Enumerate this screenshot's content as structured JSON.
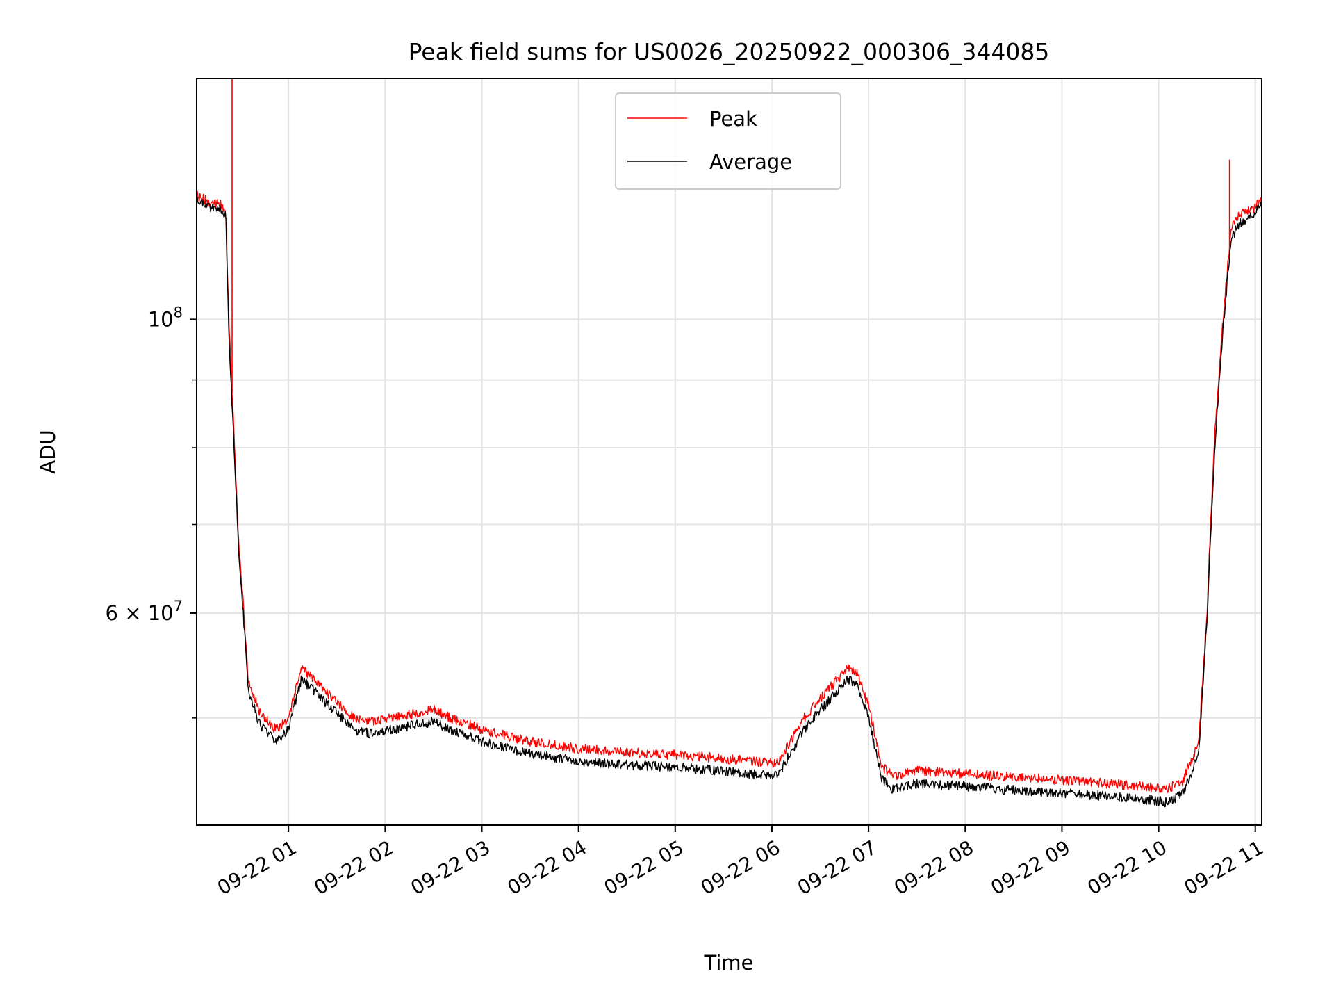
{
  "chart_data": {
    "type": "line",
    "title": "Peak field sums for US0026_20250922_000306_344085",
    "xlabel": "Time",
    "ylabel": "ADU",
    "yscale": "log",
    "grid": true,
    "legend_placement": "top-center",
    "xlim": [
      "2025-09-22 00:03",
      "2025-09-22 11:04"
    ],
    "ylim": [
      41500000,
      152000000
    ],
    "x_ticks": [
      "09-22 01",
      "09-22 02",
      "09-22 03",
      "09-22 04",
      "09-22 05",
      "09-22 06",
      "09-22 07",
      "09-22 08",
      "09-22 09",
      "09-22 10",
      "09-22 11"
    ],
    "x_tick_hours": [
      1,
      2,
      3,
      4,
      5,
      6,
      7,
      8,
      9,
      10,
      11
    ],
    "y_tick_labels": [
      {
        "value": 100000000,
        "base": "10",
        "exp": "8"
      },
      {
        "value": 60000000,
        "base": "6 × 10",
        "exp": "7"
      }
    ],
    "y_minor_ticks": [
      50000000,
      70000000,
      80000000,
      90000000
    ],
    "x": [
      "00:03",
      "00:12",
      "00:18",
      "00:21",
      "00:23",
      "00:25",
      "00:29",
      "00:35",
      "00:42",
      "00:52",
      "01:00",
      "01:08",
      "01:15",
      "01:22",
      "01:30",
      "01:40",
      "01:50",
      "02:00",
      "02:15",
      "02:30",
      "02:45",
      "02:51",
      "03:00",
      "03:30",
      "04:00",
      "04:30",
      "05:00",
      "05:30",
      "06:00",
      "06:05",
      "06:20",
      "06:35",
      "06:47",
      "06:53",
      "07:00",
      "07:08",
      "07:15",
      "07:30",
      "08:00",
      "08:30",
      "09:00",
      "09:30",
      "09:50",
      "10:05",
      "10:15",
      "10:25",
      "10:30",
      "10:35",
      "10:40",
      "10:45",
      "10:50",
      "11:00",
      "11:04"
    ],
    "series": [
      {
        "name": "Peak",
        "color": "#ff0000",
        "values": [
          124000000,
          122500000,
          122000000,
          121000000,
          100000000,
          88000000,
          68000000,
          53500000,
          50500000,
          49000000,
          50000000,
          54500000,
          53500000,
          52500000,
          51500000,
          50000000,
          49700000,
          49900000,
          50300000,
          50700000,
          49700000,
          49500000,
          49000000,
          48000000,
          47400000,
          47100000,
          46900000,
          46600000,
          46200000,
          46500000,
          50000000,
          52500000,
          54500000,
          54000000,
          51000000,
          46000000,
          45200000,
          45600000,
          45400000,
          45100000,
          44900000,
          44600000,
          44400000,
          44200000,
          44800000,
          48000000,
          60000000,
          82000000,
          100000000,
          117000000,
          120000000,
          121500000,
          124000000
        ],
        "spikes": [
          {
            "x": "00:25",
            "value": 152000000
          },
          {
            "x": "10:44",
            "value": 132000000
          }
        ]
      },
      {
        "name": "Average",
        "color": "#000000",
        "values": [
          123000000,
          121500000,
          121000000,
          120000000,
          97000000,
          86000000,
          67000000,
          52500000,
          49500000,
          48000000,
          49000000,
          53500000,
          52500000,
          51500000,
          50500000,
          49000000,
          48700000,
          48900000,
          49300000,
          49700000,
          48700000,
          48500000,
          48000000,
          47000000,
          46400000,
          46100000,
          45900000,
          45600000,
          45200000,
          45500000,
          49000000,
          51500000,
          53500000,
          53000000,
          50000000,
          45000000,
          44200000,
          44600000,
          44400000,
          44100000,
          43900000,
          43600000,
          43400000,
          43200000,
          43800000,
          47000000,
          59000000,
          80000000,
          98000000,
          115000000,
          118000000,
          120500000,
          123000000
        ]
      }
    ]
  }
}
